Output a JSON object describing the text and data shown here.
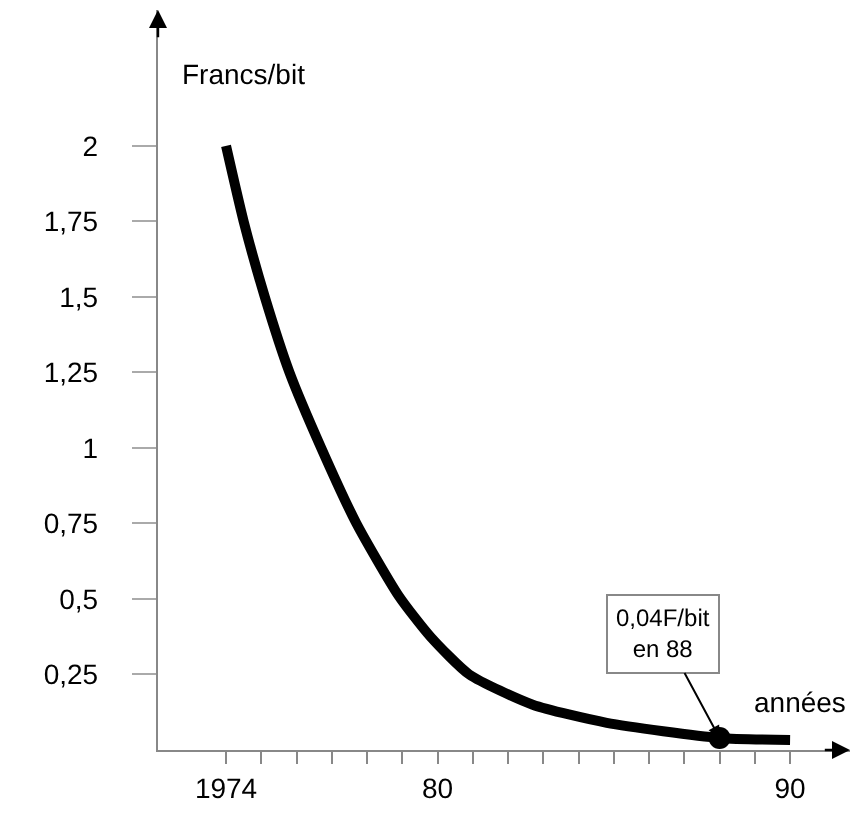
{
  "chart_data": {
    "type": "line",
    "xlabel": "années",
    "ylabel": "Francs/bit",
    "series": [
      {
        "color": "#000000",
        "marker": "none",
        "x": [
          1974,
          1974.5,
          1975.1,
          1975.8,
          1976.7,
          1977.7,
          1978.9,
          1979.8,
          1980.9,
          1982.7,
          1984.8,
          1988,
          1990
        ],
        "values": [
          2,
          1.75,
          1.5,
          1.25,
          1,
          0.75,
          0.51,
          0.375,
          0.25,
          0.15,
          0.09,
          0.04,
          0.033
        ]
      },
      {
        "type": "scatter",
        "color": "#000000",
        "marker": "circle",
        "x": [
          1988
        ],
        "values": [
          0.04
        ]
      }
    ],
    "annotations": [
      {
        "text": "0,04F/bit\nen 88",
        "x": 1988,
        "y": 0.04
      }
    ],
    "xlim": [
      1972.07,
      1991.7
    ],
    "ylim": [
      0,
      2.45
    ],
    "xticks": [
      {
        "value": 1974,
        "label": "1974"
      },
      {
        "value": 1975,
        "label": null
      },
      {
        "value": 1976,
        "label": null
      },
      {
        "value": 1977,
        "label": null
      },
      {
        "value": 1978,
        "label": null
      },
      {
        "value": 1979,
        "label": null
      },
      {
        "value": 1980,
        "label": "80"
      },
      {
        "value": 1981,
        "label": null
      },
      {
        "value": 1982,
        "label": null
      },
      {
        "value": 1983,
        "label": null
      },
      {
        "value": 1984,
        "label": null
      },
      {
        "value": 1985,
        "label": null
      },
      {
        "value": 1986,
        "label": null
      },
      {
        "value": 1987,
        "label": null
      },
      {
        "value": 1988,
        "label": null
      },
      {
        "value": 1989,
        "label": null
      },
      {
        "value": 1990,
        "label": "90"
      }
    ],
    "yticks": [
      {
        "value": 0.25,
        "label": "0,25"
      },
      {
        "value": 0.5,
        "label": "0,5"
      },
      {
        "value": 0.75,
        "label": "0,75"
      },
      {
        "value": 1,
        "label": "1"
      },
      {
        "value": 1.25,
        "label": "1,25"
      },
      {
        "value": 1.5,
        "label": "1,5"
      },
      {
        "value": 1.75,
        "label": "1,75"
      },
      {
        "value": 2,
        "label": "2"
      }
    ],
    "grid": false
  }
}
